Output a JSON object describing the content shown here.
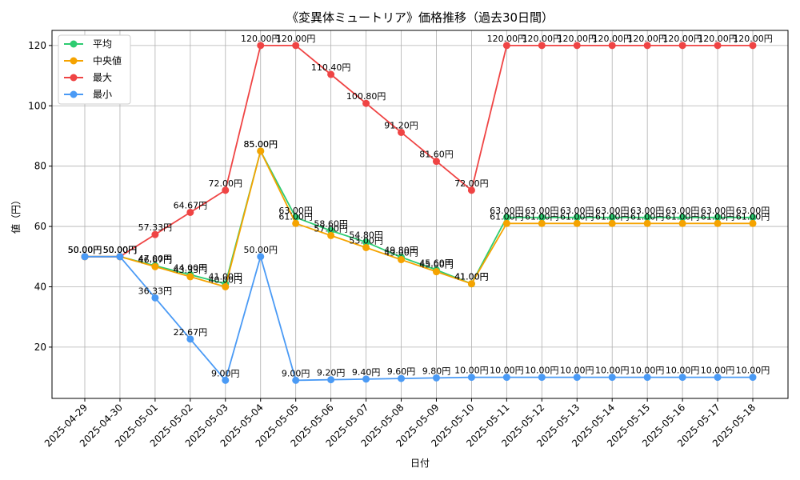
{
  "chart_data": {
    "type": "line",
    "title": "《変異体ミュートリア》価格推移（過去30日間）",
    "xlabel": "日付",
    "ylabel": "値（円）",
    "ylim": [
      3,
      125
    ],
    "yticks": [
      20,
      40,
      60,
      80,
      100,
      120
    ],
    "grid": true,
    "legend_position": "top-left",
    "value_suffix": "円",
    "categories": [
      "2025-04-29",
      "2025-04-30",
      "2025-05-01",
      "2025-05-02",
      "2025-05-03",
      "2025-05-04",
      "2025-05-05",
      "2025-05-06",
      "2025-05-07",
      "2025-05-08",
      "2025-05-09",
      "2025-05-10",
      "2025-05-11",
      "2025-05-12",
      "2025-05-13",
      "2025-05-14",
      "2025-05-15",
      "2025-05-16",
      "2025-05-17",
      "2025-05-18"
    ],
    "series": [
      {
        "name": "平均",
        "color": "#2ecc71",
        "values": [
          50.0,
          50.0,
          47.0,
          44.0,
          41.0,
          85.0,
          63.0,
          58.6,
          54.8,
          49.8,
          45.6,
          41.0,
          63.0,
          63.0,
          63.0,
          63.0,
          63.0,
          63.0,
          63.0,
          63.0
        ]
      },
      {
        "name": "中央値",
        "color": "#f5a300",
        "values": [
          50.0,
          50.0,
          46.67,
          43.33,
          40.0,
          85.0,
          61.0,
          57.0,
          53.0,
          49.0,
          45.0,
          41.0,
          61.0,
          61.0,
          61.0,
          61.0,
          61.0,
          61.0,
          61.0,
          61.0
        ]
      },
      {
        "name": "最大",
        "color": "#ef4444",
        "values": [
          50.0,
          50.0,
          57.33,
          64.67,
          72.0,
          120.0,
          120.0,
          110.4,
          100.8,
          91.2,
          81.6,
          72.0,
          120.0,
          120.0,
          120.0,
          120.0,
          120.0,
          120.0,
          120.0,
          120.0
        ]
      },
      {
        "name": "最小",
        "color": "#4a9af5",
        "values": [
          50.0,
          50.0,
          36.33,
          22.67,
          9.0,
          50.0,
          9.0,
          9.2,
          9.4,
          9.6,
          9.8,
          10.0,
          10.0,
          10.0,
          10.0,
          10.0,
          10.0,
          10.0,
          10.0,
          10.0
        ]
      }
    ]
  }
}
